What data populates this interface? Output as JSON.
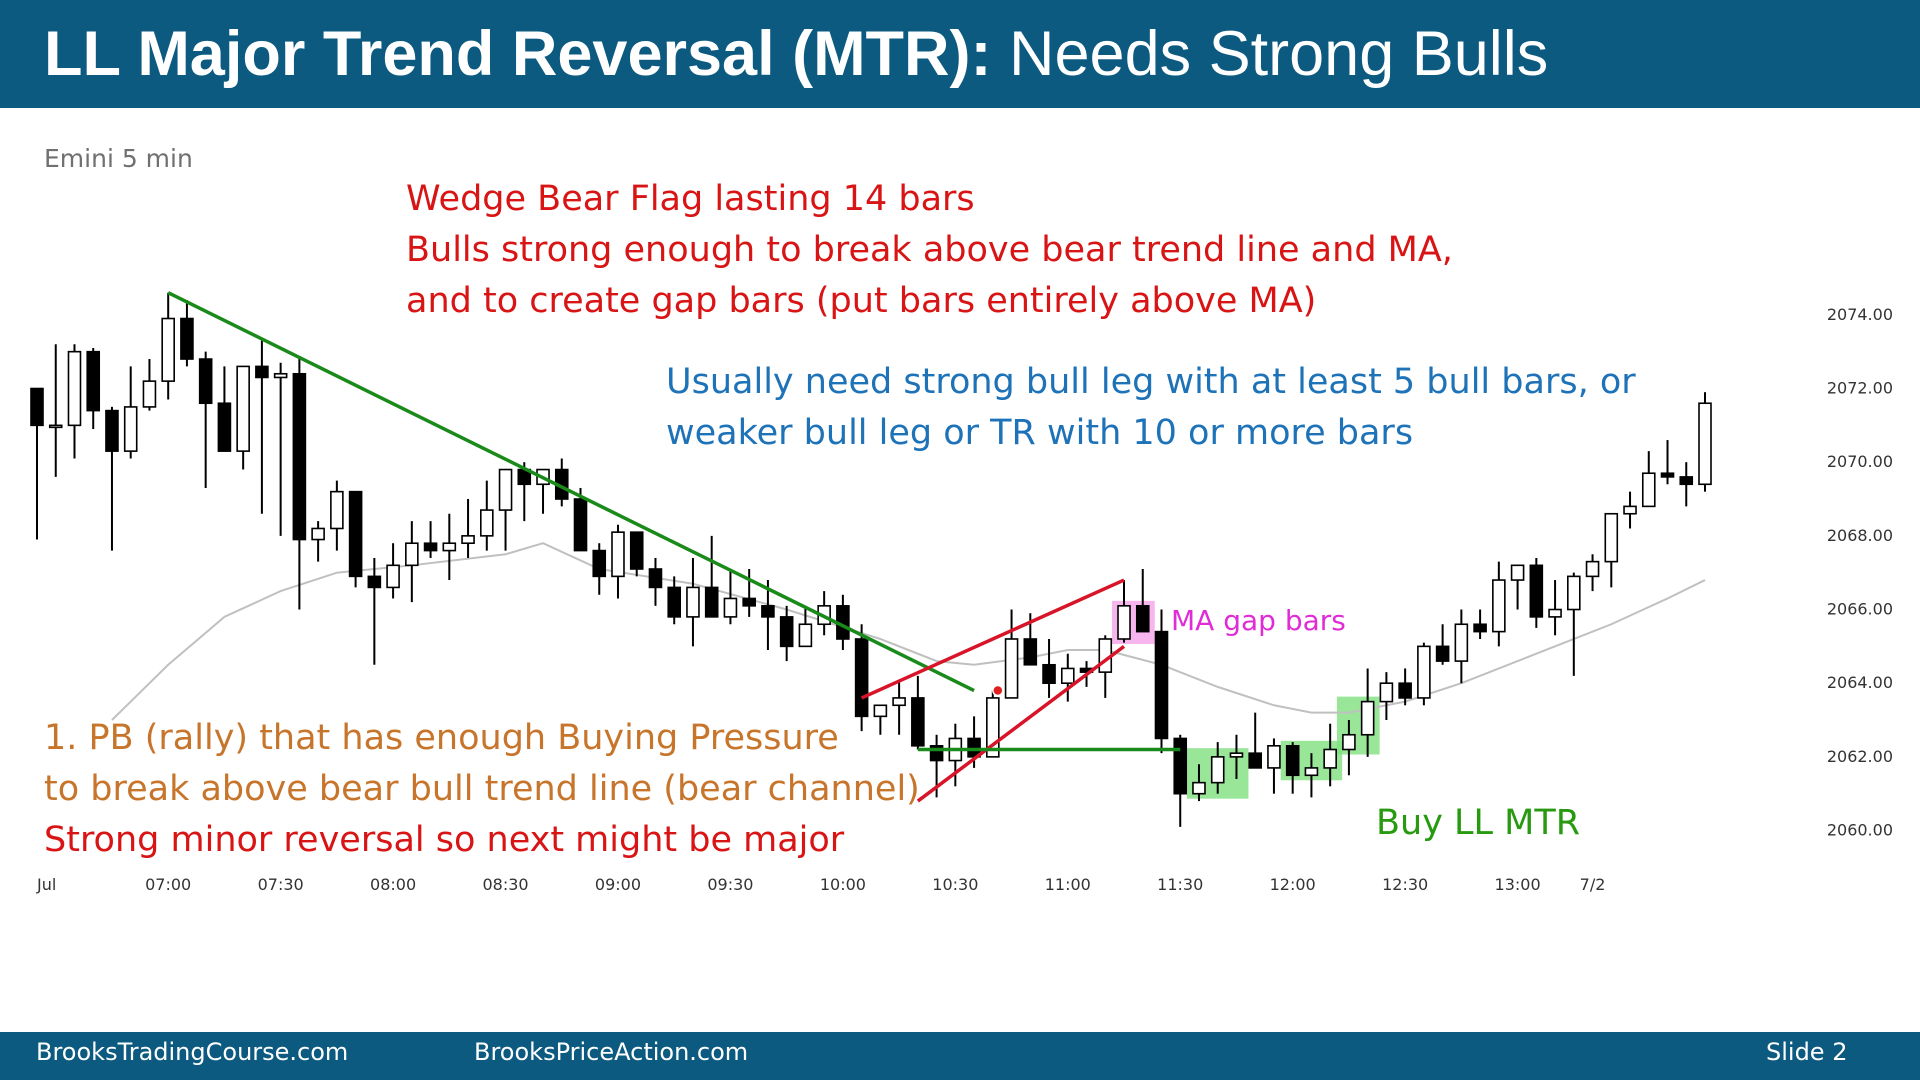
{
  "slide": {
    "title_bold": "LL Major Trend Reversal (MTR):",
    "title_rest": " Needs Strong Bulls",
    "number_label": "Slide  2"
  },
  "footer": {
    "left": "BrooksTradingCourse.com",
    "middle": "BrooksPriceAction.com"
  },
  "chart_label": "Emini 5 min",
  "annotations": {
    "wedge_bear_flag": [
      "Wedge Bear Flag lasting 14 bars",
      "Bulls strong enough to break above bear trend line and MA,",
      "and to create gap bars (put bars entirely above MA)"
    ],
    "usually_need": [
      "Usually need strong bull leg with at least 5 bull bars, or",
      "weaker bull leg or TR with 10 or more bars"
    ],
    "pb_rally": [
      "1. PB (rally) that has enough Buying Pressure",
      "to break above bear bull trend line (bear channel)"
    ],
    "strong_minor": "Strong minor reversal so next might be major",
    "ma_gap_bars": "MA gap bars",
    "buy_ll_mtr": "Buy LL MTR"
  },
  "colors": {
    "header": "#0c5a80",
    "bear_trendline": "#1a8a1a",
    "wedge": "#d81428",
    "ma_line": "#c0c0c0",
    "highlight_green": "#7fe07f",
    "highlight_pink": "#f5a3e8"
  },
  "chart_data": {
    "type": "candlestick",
    "title": "",
    "ylim": [
      2059.2,
      2075.0
    ],
    "y_ticks": [
      2060,
      2062,
      2064,
      2066,
      2068,
      2070,
      2072,
      2074
    ],
    "y_tick_labels": [
      "2060.00",
      "2062.00",
      "2064.00",
      "2066.00",
      "2068.00",
      "2070.00",
      "2072.00",
      "2074.00"
    ],
    "x_ticks": [
      {
        "i": 0,
        "label": "Jul"
      },
      {
        "i": 7,
        "label": "07:00"
      },
      {
        "i": 13,
        "label": "07:30"
      },
      {
        "i": 19,
        "label": "08:00"
      },
      {
        "i": 25,
        "label": "08:30"
      },
      {
        "i": 31,
        "label": "09:00"
      },
      {
        "i": 37,
        "label": "09:30"
      },
      {
        "i": 43,
        "label": "10:00"
      },
      {
        "i": 49,
        "label": "10:30"
      },
      {
        "i": 55,
        "label": "11:00"
      },
      {
        "i": 61,
        "label": "11:30"
      },
      {
        "i": 67,
        "label": "12:00"
      },
      {
        "i": 73,
        "label": "12:30"
      },
      {
        "i": 79,
        "label": "13:00"
      },
      {
        "i": 83,
        "label": "7/2"
      }
    ],
    "bars": [
      [
        2072.0,
        2072.0,
        2067.9,
        2071.0
      ],
      [
        2071.0,
        2073.2,
        2069.6,
        2071.0
      ],
      [
        2071.0,
        2073.2,
        2070.1,
        2073.0
      ],
      [
        2073.0,
        2073.1,
        2070.9,
        2071.4
      ],
      [
        2071.4,
        2071.5,
        2067.6,
        2070.3
      ],
      [
        2070.3,
        2072.6,
        2070.1,
        2071.5
      ],
      [
        2071.5,
        2072.8,
        2071.4,
        2072.2
      ],
      [
        2072.2,
        2074.6,
        2071.7,
        2073.9
      ],
      [
        2073.9,
        2074.4,
        2072.6,
        2072.8
      ],
      [
        2072.8,
        2073.0,
        2069.3,
        2071.6
      ],
      [
        2071.6,
        2072.6,
        2070.5,
        2070.3
      ],
      [
        2070.3,
        2072.6,
        2069.8,
        2072.6
      ],
      [
        2072.6,
        2073.3,
        2068.6,
        2072.3
      ],
      [
        2072.3,
        2072.7,
        2068.0,
        2072.4
      ],
      [
        2072.4,
        2072.8,
        2066.0,
        2067.9
      ],
      [
        2067.9,
        2068.4,
        2067.3,
        2068.2
      ],
      [
        2068.2,
        2069.5,
        2067.6,
        2069.2
      ],
      [
        2069.2,
        2069.2,
        2066.6,
        2066.9
      ],
      [
        2066.9,
        2067.4,
        2064.5,
        2066.6
      ],
      [
        2066.6,
        2067.8,
        2066.3,
        2067.2
      ],
      [
        2067.2,
        2068.4,
        2066.2,
        2067.8
      ],
      [
        2067.8,
        2068.4,
        2067.4,
        2067.6
      ],
      [
        2067.6,
        2068.6,
        2066.8,
        2067.8
      ],
      [
        2067.8,
        2069.0,
        2067.4,
        2068.0
      ],
      [
        2068.0,
        2069.5,
        2067.6,
        2068.7
      ],
      [
        2068.7,
        2069.6,
        2067.6,
        2069.8
      ],
      [
        2069.8,
        2070.0,
        2068.4,
        2069.4
      ],
      [
        2069.4,
        2069.6,
        2068.6,
        2069.8
      ],
      [
        2069.8,
        2070.1,
        2068.8,
        2069.0
      ],
      [
        2069.0,
        2069.3,
        2067.8,
        2067.6
      ],
      [
        2067.6,
        2067.8,
        2066.4,
        2066.9
      ],
      [
        2066.9,
        2068.3,
        2066.3,
        2068.1
      ],
      [
        2068.1,
        2067.8,
        2066.9,
        2067.1
      ],
      [
        2067.1,
        2067.4,
        2066.1,
        2066.6
      ],
      [
        2066.6,
        2066.9,
        2065.6,
        2065.8
      ],
      [
        2065.8,
        2067.4,
        2065.0,
        2066.6
      ],
      [
        2066.6,
        2068.0,
        2066.1,
        2065.8
      ],
      [
        2065.8,
        2067.1,
        2065.6,
        2066.3
      ],
      [
        2066.3,
        2067.1,
        2065.8,
        2066.1
      ],
      [
        2066.1,
        2066.8,
        2064.9,
        2065.8
      ],
      [
        2065.8,
        2066.1,
        2064.6,
        2065.0
      ],
      [
        2065.0,
        2066.1,
        2065.0,
        2065.6
      ],
      [
        2065.6,
        2066.5,
        2065.3,
        2066.1
      ],
      [
        2066.1,
        2066.4,
        2064.9,
        2065.2
      ],
      [
        2065.2,
        2065.6,
        2062.7,
        2063.1
      ],
      [
        2063.1,
        2063.2,
        2062.6,
        2063.4
      ],
      [
        2063.4,
        2064.1,
        2062.6,
        2063.6
      ],
      [
        2063.6,
        2064.2,
        2062.2,
        2062.3
      ],
      [
        2062.3,
        2062.6,
        2060.9,
        2061.9
      ],
      [
        2061.9,
        2062.9,
        2061.2,
        2062.5
      ],
      [
        2062.5,
        2063.1,
        2061.7,
        2062.0
      ],
      [
        2062.0,
        2063.8,
        2062.7,
        2063.6
      ],
      [
        2063.6,
        2066.0,
        2063.6,
        2065.2
      ],
      [
        2065.2,
        2065.9,
        2064.6,
        2064.5
      ],
      [
        2064.5,
        2065.2,
        2063.6,
        2064.0
      ],
      [
        2064.0,
        2064.8,
        2063.5,
        2064.4
      ],
      [
        2064.4,
        2064.6,
        2063.9,
        2064.3
      ],
      [
        2064.3,
        2065.3,
        2063.6,
        2065.2
      ],
      [
        2065.2,
        2066.8,
        2065.1,
        2066.1
      ],
      [
        2066.1,
        2067.1,
        2065.4,
        2065.4
      ],
      [
        2065.4,
        2066.0,
        2062.1,
        2062.5
      ],
      [
        2062.5,
        2062.6,
        2060.1,
        2061.0
      ],
      [
        2061.0,
        2061.8,
        2060.8,
        2061.3
      ],
      [
        2061.3,
        2062.4,
        2061.0,
        2062.0
      ],
      [
        2062.0,
        2062.6,
        2061.4,
        2062.1
      ],
      [
        2062.1,
        2063.2,
        2061.7,
        2061.7
      ],
      [
        2061.7,
        2062.5,
        2061.0,
        2062.3
      ],
      [
        2062.3,
        2062.4,
        2061.0,
        2061.5
      ],
      [
        2061.5,
        2062.1,
        2060.9,
        2061.7
      ],
      [
        2061.7,
        2062.9,
        2061.2,
        2062.2
      ],
      [
        2062.2,
        2063.0,
        2061.5,
        2062.6
      ],
      [
        2062.6,
        2064.4,
        2062.0,
        2063.5
      ],
      [
        2063.5,
        2064.3,
        2063.0,
        2064.0
      ],
      [
        2064.0,
        2064.4,
        2063.4,
        2063.6
      ],
      [
        2063.6,
        2065.1,
        2063.4,
        2065.0
      ],
      [
        2065.0,
        2065.6,
        2064.5,
        2064.6
      ],
      [
        2064.6,
        2066.0,
        2064.0,
        2065.6
      ],
      [
        2065.6,
        2066.0,
        2065.2,
        2065.4
      ],
      [
        2065.4,
        2067.3,
        2065.0,
        2066.8
      ],
      [
        2066.8,
        2067.2,
        2066.0,
        2067.2
      ],
      [
        2067.2,
        2067.4,
        2065.5,
        2065.8
      ],
      [
        2065.8,
        2066.8,
        2065.3,
        2066.0
      ],
      [
        2066.0,
        2067.0,
        2064.2,
        2066.9
      ],
      [
        2066.9,
        2067.5,
        2066.5,
        2067.3
      ],
      [
        2067.3,
        2068.4,
        2066.6,
        2068.6
      ],
      [
        2068.6,
        2069.2,
        2068.2,
        2068.8
      ],
      [
        2068.8,
        2070.3,
        2068.8,
        2069.7
      ],
      [
        2069.7,
        2070.6,
        2069.4,
        2069.6
      ],
      [
        2069.6,
        2070.0,
        2068.8,
        2069.4
      ],
      [
        2069.4,
        2071.9,
        2069.2,
        2071.6
      ]
    ],
    "moving_average": [
      [
        4,
        2063.0
      ],
      [
        7,
        2064.5
      ],
      [
        10,
        2065.8
      ],
      [
        13,
        2066.5
      ],
      [
        16,
        2067.0
      ],
      [
        20,
        2067.2
      ],
      [
        25,
        2067.5
      ],
      [
        27,
        2067.8
      ],
      [
        30,
        2067.1
      ],
      [
        35,
        2066.7
      ],
      [
        40,
        2066.0
      ],
      [
        45,
        2065.2
      ],
      [
        48,
        2064.6
      ],
      [
        50,
        2064.5
      ],
      [
        53,
        2064.7
      ],
      [
        55,
        2064.9
      ],
      [
        57,
        2064.9
      ],
      [
        60,
        2064.5
      ],
      [
        63,
        2063.9
      ],
      [
        66,
        2063.4
      ],
      [
        68,
        2063.2
      ],
      [
        70,
        2063.2
      ],
      [
        73,
        2063.5
      ],
      [
        76,
        2064.0
      ],
      [
        80,
        2064.8
      ],
      [
        84,
        2065.6
      ],
      [
        87,
        2066.3
      ],
      [
        89,
        2066.8
      ]
    ]
  }
}
